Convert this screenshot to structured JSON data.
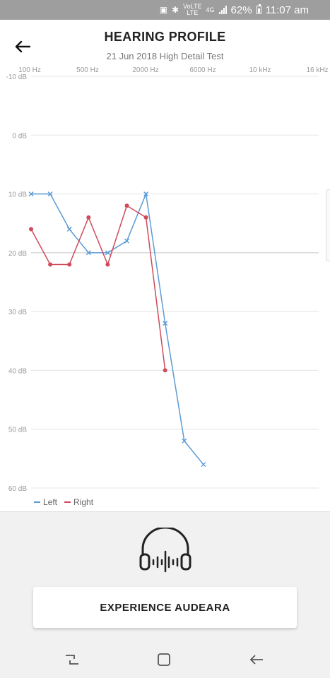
{
  "status_bar": {
    "battery": "62%",
    "time": "11:07 am",
    "network": "4G",
    "volte_top": "VoLTE",
    "volte_bottom": "LTE"
  },
  "header": {
    "title": "HEARING PROFILE",
    "subtitle": "21 Jun 2018 High Detail Test",
    "back_icon": "arrow-left-icon"
  },
  "chart_data": {
    "type": "line",
    "x_tick_labels": [
      "100 Hz",
      "500 Hz",
      "2000 Hz",
      "6000 Hz",
      "10 kHz",
      "16 kHz"
    ],
    "y_tick_labels": [
      "-10 dB",
      "0 dB",
      "10 dB",
      "20 dB",
      "30 dB",
      "40 dB",
      "50 dB",
      "60 dB"
    ],
    "y_values": [
      -10,
      0,
      10,
      20,
      30,
      40,
      50,
      60
    ],
    "ylim": [
      -10,
      60
    ],
    "y_inverted": true,
    "x_slots": 16,
    "series": [
      {
        "name": "Left",
        "color": "#5b9bd5",
        "marker": "x",
        "points": [
          [
            0,
            10
          ],
          [
            1,
            10
          ],
          [
            2,
            16
          ],
          [
            3,
            20
          ],
          [
            4,
            20
          ],
          [
            5,
            18
          ],
          [
            6,
            10
          ],
          [
            7,
            32
          ],
          [
            8,
            52
          ],
          [
            9,
            56
          ]
        ]
      },
      {
        "name": "Right",
        "color": "#d04a5a",
        "marker": "dot",
        "points": [
          [
            0,
            16
          ],
          [
            1,
            22
          ],
          [
            2,
            22
          ],
          [
            3,
            14
          ],
          [
            4,
            22
          ],
          [
            5,
            12
          ],
          [
            6,
            14
          ],
          [
            7,
            40
          ]
        ]
      }
    ],
    "legend_position": "bottom-left",
    "grid": true
  },
  "cta": {
    "label": "EXPERIENCE AUDEARA",
    "icon": "headphones-icon"
  },
  "nav": {
    "recents_icon": "recents-icon",
    "home_icon": "home-icon",
    "back_icon": "back-icon"
  }
}
